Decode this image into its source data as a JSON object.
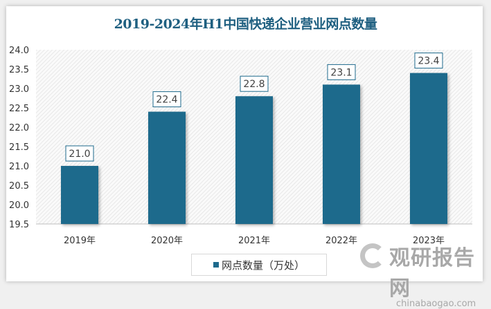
{
  "chart_data": {
    "type": "bar",
    "title": "2019-2024年H1中国快递企业营业网点数量",
    "categories": [
      "2019年",
      "2020年",
      "2021年",
      "2022年",
      "2023年"
    ],
    "series": [
      {
        "name": "网点数量（万处）",
        "values": [
          21.0,
          22.4,
          22.8,
          23.1,
          23.4
        ]
      }
    ],
    "ylim": [
      19.5,
      24.0
    ],
    "yticks": [
      "19.5",
      "20.0",
      "20.5",
      "21.0",
      "21.5",
      "22.0",
      "22.5",
      "23.0",
      "23.5",
      "24.0"
    ],
    "xlabel": "",
    "ylabel": "",
    "legend": "bottom",
    "colors": {
      "bar": "#1d6a8c",
      "title": "#1e5f80"
    }
  },
  "watermark": {
    "cn": "观研报告网",
    "en": "chinabaogao.com"
  }
}
